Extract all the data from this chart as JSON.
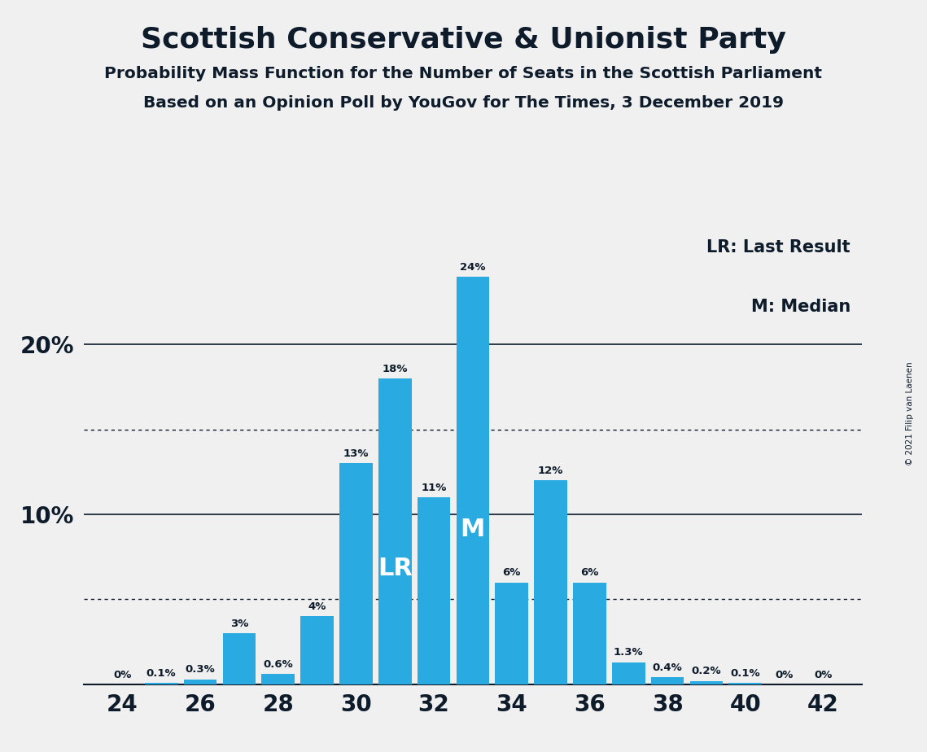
{
  "title": "Scottish Conservative & Unionist Party",
  "subtitle1": "Probability Mass Function for the Number of Seats in the Scottish Parliament",
  "subtitle2": "Based on an Opinion Poll by YouGov for The Times, 3 December 2019",
  "copyright": "© 2021 Filip van Laenen",
  "seats": [
    24,
    25,
    26,
    27,
    28,
    29,
    30,
    31,
    32,
    33,
    34,
    35,
    36,
    37,
    38,
    39,
    40,
    41,
    42
  ],
  "probabilities": [
    0.0,
    0.1,
    0.3,
    3.0,
    0.6,
    4.0,
    13.0,
    18.0,
    11.0,
    24.0,
    6.0,
    12.0,
    6.0,
    1.3,
    0.4,
    0.2,
    0.1,
    0.0,
    0.0
  ],
  "bar_color": "#29ABE2",
  "background_color": "#F0F0F0",
  "text_color": "#0D1B2A",
  "lr_seat": 31,
  "median_seat": 33,
  "lr_label": "LR",
  "median_label": "M",
  "solid_grid_values": [
    10,
    20
  ],
  "dotted_grid_values": [
    5,
    15
  ],
  "xlim": [
    23.0,
    43.0
  ],
  "ylim": [
    0,
    27
  ],
  "xlabel_seats": [
    24,
    26,
    28,
    30,
    32,
    34,
    36,
    38,
    40,
    42
  ],
  "bar_width": 0.85
}
